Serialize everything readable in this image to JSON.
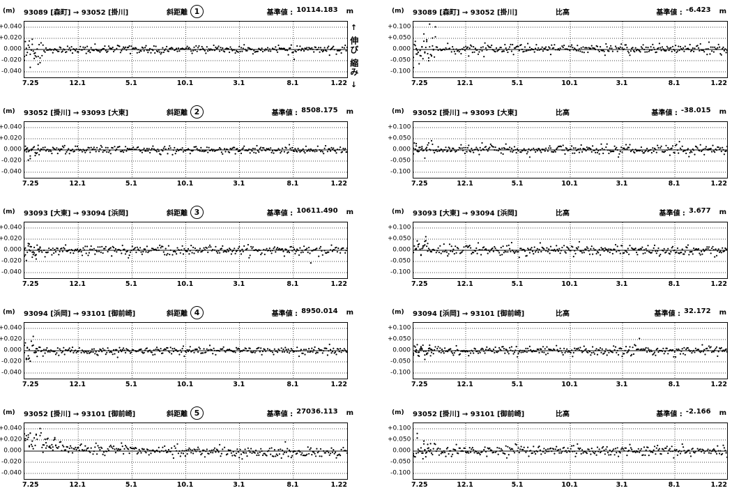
{
  "direction_legend": {
    "up_arrow": "↑",
    "extend_label": "伸び",
    "shrink_label": "縮み",
    "down_arrow": "↓"
  },
  "chart_data": [
    {
      "id": 1,
      "column": "left",
      "type": "scatter",
      "unit_label": "(m)",
      "pair": "93089 [森町] → 93052 [掛川]",
      "measure": "斜距離",
      "circled_number": "1",
      "baseline_label": "基準値 :",
      "baseline_value": "10114.183",
      "baseline_unit": "m",
      "ylim": [
        -0.05,
        0.05
      ],
      "yticks": {
        "labels": [
          "+0.040",
          "+0.020",
          "0.000",
          "-0.020",
          "-0.040"
        ],
        "values": [
          0.04,
          0.02,
          0,
          -0.02,
          -0.04
        ]
      },
      "x_ticks": [
        "7.25",
        "12.1",
        "5.1",
        "10.1",
        "3.1",
        "8.1",
        "1.22"
      ],
      "points": {
        "n": 330,
        "sigma": 0.0035,
        "early_sigma": 0.012,
        "early_frac": 0.06,
        "early_bias": -0.005,
        "trend": [
          0.001,
          0
        ],
        "seed": 101
      },
      "description": "Daily slant-distance residuals scattered about 0.000 m within roughly ±0.010 m; noticeably larger scatter (to about -0.030 m) at the start of the series."
    },
    {
      "id": 1,
      "column": "right",
      "type": "scatter",
      "unit_label": "(m)",
      "pair": "93089 [森町] → 93052 [掛川]",
      "measure": "比高",
      "circled_number": null,
      "baseline_label": "基準値 :",
      "baseline_value": "-6.423",
      "baseline_unit": "m",
      "ylim": [
        -0.125,
        0.125
      ],
      "yticks": {
        "labels": [
          "+0.100",
          "+0.050",
          "0.000",
          "-0.050",
          "-0.100"
        ],
        "values": [
          0.1,
          0.05,
          0,
          -0.05,
          -0.1
        ]
      },
      "x_ticks": [
        "7.25",
        "12.1",
        "5.1",
        "10.1",
        "3.1",
        "8.1",
        "1.22"
      ],
      "points": {
        "n": 330,
        "sigma": 0.011,
        "early_sigma": 0.032,
        "early_frac": 0.07,
        "early_bias": -0.01,
        "trend": [
          0.004,
          0
        ],
        "seed": 201
      },
      "description": "Daily height-difference residuals scattered about 0.000 m within roughly ±0.030 m; early data spread from about -0.080 to +0.050 m."
    },
    {
      "id": 2,
      "column": "left",
      "type": "scatter",
      "unit_label": "(m)",
      "pair": "93052 [掛川] → 93093 [大東]",
      "measure": "斜距離",
      "circled_number": "2",
      "baseline_label": "基準値 :",
      "baseline_value": "8508.175",
      "baseline_unit": "m",
      "ylim": [
        -0.05,
        0.05
      ],
      "yticks": {
        "labels": [
          "+0.040",
          "+0.020",
          "0.000",
          "-0.020",
          "-0.040"
        ],
        "values": [
          0.04,
          0.02,
          0,
          -0.02,
          -0.04
        ]
      },
      "x_ticks": [
        "7.25",
        "12.1",
        "5.1",
        "10.1",
        "3.1",
        "8.1",
        "1.22"
      ],
      "points": {
        "n": 330,
        "sigma": 0.0035,
        "early_sigma": 0.008,
        "early_frac": 0.05,
        "early_bias": -0.002,
        "trend": [
          0,
          0
        ],
        "seed": 102
      },
      "description": "Flat scatter about 0.000 m within roughly ±0.008 m, slightly wider at the series start."
    },
    {
      "id": 2,
      "column": "right",
      "type": "scatter",
      "unit_label": "(m)",
      "pair": "93052 [掛川] → 93093 [大東]",
      "measure": "比高",
      "circled_number": null,
      "baseline_label": "基準値 :",
      "baseline_value": "-38.015",
      "baseline_unit": "m",
      "ylim": [
        -0.125,
        0.125
      ],
      "yticks": {
        "labels": [
          "+0.100",
          "+0.050",
          "0.000",
          "-0.050",
          "-0.100"
        ],
        "values": [
          0.1,
          0.05,
          0,
          -0.05,
          -0.1
        ]
      },
      "x_ticks": [
        "7.25",
        "12.1",
        "5.1",
        "10.1",
        "3.1",
        "8.1",
        "1.22"
      ],
      "points": {
        "n": 330,
        "sigma": 0.011,
        "early_sigma": 0.02,
        "early_frac": 0.06,
        "early_bias": 0.004,
        "trend": [
          0.002,
          0
        ],
        "seed": 202
      },
      "description": "Scatter about 0.000 m within roughly ±0.025 m; early cluster reaching about +0.050 m."
    },
    {
      "id": 3,
      "column": "left",
      "type": "scatter",
      "unit_label": "(m)",
      "pair": "93093 [大東] → 93094 [浜岡]",
      "measure": "斜距離",
      "circled_number": "3",
      "baseline_label": "基準値 :",
      "baseline_value": "10611.490",
      "baseline_unit": "m",
      "ylim": [
        -0.05,
        0.05
      ],
      "yticks": {
        "labels": [
          "+0.040",
          "+0.020",
          "0.000",
          "-0.020",
          "-0.040"
        ],
        "values": [
          0.04,
          0.02,
          0,
          -0.02,
          -0.04
        ]
      },
      "x_ticks": [
        "7.25",
        "12.1",
        "5.1",
        "10.1",
        "3.1",
        "8.1",
        "1.22"
      ],
      "points": {
        "n": 330,
        "sigma": 0.0045,
        "early_sigma": 0.009,
        "early_frac": 0.05,
        "early_bias": 0,
        "trend": [
          0,
          0
        ],
        "seed": 103
      },
      "description": "Flat scatter about 0.000 m within roughly ±0.010 m."
    },
    {
      "id": 3,
      "column": "right",
      "type": "scatter",
      "unit_label": "(m)",
      "pair": "93093 [大東] → 93094 [浜岡]",
      "measure": "比高",
      "circled_number": null,
      "baseline_label": "基準値 :",
      "baseline_value": "3.677",
      "baseline_unit": "m",
      "ylim": [
        -0.125,
        0.125
      ],
      "yticks": {
        "labels": [
          "+0.100",
          "+0.050",
          "0.000",
          "-0.050",
          "-0.100"
        ],
        "values": [
          0.1,
          0.05,
          0,
          -0.05,
          -0.1
        ]
      },
      "x_ticks": [
        "7.25",
        "12.1",
        "5.1",
        "10.1",
        "3.1",
        "8.1",
        "1.22"
      ],
      "points": {
        "n": 330,
        "sigma": 0.012,
        "early_sigma": 0.018,
        "early_frac": 0.05,
        "early_bias": 0.006,
        "trend": [
          0.002,
          0
        ],
        "seed": 203
      },
      "description": "Scatter about 0.000 m within roughly ±0.025 m with occasional clusters near +0.050 m."
    },
    {
      "id": 4,
      "column": "left",
      "type": "scatter",
      "unit_label": "(m)",
      "pair": "93094 [浜岡] → 93101 [御前崎]",
      "measure": "斜距離",
      "circled_number": "4",
      "baseline_label": "基準値 :",
      "baseline_value": "8950.014",
      "baseline_unit": "m",
      "ylim": [
        -0.05,
        0.05
      ],
      "yticks": {
        "labels": [
          "+0.040",
          "+0.020",
          "0.000",
          "-0.020",
          "-0.040"
        ],
        "values": [
          0.04,
          0.02,
          0,
          -0.02,
          -0.04
        ]
      },
      "x_ticks": [
        "7.25",
        "12.1",
        "5.1",
        "10.1",
        "3.1",
        "8.1",
        "1.22"
      ],
      "points": {
        "n": 330,
        "sigma": 0.0035,
        "early_sigma": 0.01,
        "early_frac": 0.04,
        "early_bias": -0.003,
        "trend": [
          0,
          0
        ],
        "seed": 104
      },
      "description": "Flat scatter about 0.000 m within roughly ±0.008 m, slightly wider at the series start."
    },
    {
      "id": 4,
      "column": "right",
      "type": "scatter",
      "unit_label": "(m)",
      "pair": "93094 [浜岡] → 93101 [御前崎]",
      "measure": "比高",
      "circled_number": null,
      "baseline_label": "基準値 :",
      "baseline_value": "32.172",
      "baseline_unit": "m",
      "ylim": [
        -0.125,
        0.125
      ],
      "yticks": {
        "labels": [
          "+0.100",
          "+0.050",
          "0.000",
          "-0.050",
          "-0.100"
        ],
        "values": [
          0.1,
          0.05,
          0,
          -0.05,
          -0.1
        ]
      },
      "x_ticks": [
        "7.25",
        "12.1",
        "5.1",
        "10.1",
        "3.1",
        "8.1",
        "1.22"
      ],
      "points": {
        "n": 330,
        "sigma": 0.011,
        "early_sigma": 0.02,
        "early_frac": 0.06,
        "early_bias": -0.004,
        "trend": [
          0,
          0
        ],
        "seed": 204
      },
      "description": "Scatter about 0.000 m within roughly ±0.025 m; a few mid-series points near ±0.050 m."
    },
    {
      "id": 5,
      "column": "left",
      "type": "scatter",
      "unit_label": "(m)",
      "pair": "93052 [掛川] → 93101 [御前崎]",
      "measure": "斜距離",
      "circled_number": "5",
      "baseline_label": "基準値 :",
      "baseline_value": "27036.113",
      "baseline_unit": "m",
      "ylim": [
        -0.05,
        0.05
      ],
      "yticks": {
        "labels": [
          "+0.040",
          "+0.020",
          "0.000",
          "-0.020",
          "-0.040"
        ],
        "values": [
          0.04,
          0.02,
          0,
          -0.02,
          -0.04
        ]
      },
      "x_ticks": [
        "7.25",
        "12.1",
        "5.1",
        "10.1",
        "3.1",
        "8.1",
        "1.22"
      ],
      "points": {
        "n": 330,
        "sigma": 0.005,
        "early_sigma": 0.009,
        "early_frac": 0.1,
        "early_bias": 0.004,
        "trend": [
          0.002,
          -0.004
        ],
        "decay_amp": 0.012,
        "decay_tau": 0.16,
        "seed": 105
      },
      "description": "Starts elevated near +0.015 m, decays toward 0.000 m by mid-series, ending slightly negative; scatter roughly ±0.010 m."
    },
    {
      "id": 5,
      "column": "right",
      "type": "scatter",
      "unit_label": "(m)",
      "pair": "93052 [掛川] → 93101 [御前崎]",
      "measure": "比高",
      "circled_number": null,
      "baseline_label": "基準値 :",
      "baseline_value": "-2.166",
      "baseline_unit": "m",
      "ylim": [
        -0.125,
        0.125
      ],
      "yticks": {
        "labels": [
          "+0.100",
          "+0.050",
          "0.000",
          "-0.050",
          "-0.100"
        ],
        "values": [
          0.1,
          0.05,
          0,
          -0.05,
          -0.1
        ]
      },
      "x_ticks": [
        "7.25",
        "12.1",
        "5.1",
        "10.1",
        "3.1",
        "8.1",
        "1.22"
      ],
      "points": {
        "n": 330,
        "sigma": 0.012,
        "early_sigma": 0.02,
        "early_frac": 0.07,
        "early_bias": -0.003,
        "trend": [
          0,
          0
        ],
        "seed": 205
      },
      "description": "Scatter about 0.000 m within roughly ±0.030 m; wider at the series start and occasional mid-series clusters near +0.050 m."
    }
  ]
}
